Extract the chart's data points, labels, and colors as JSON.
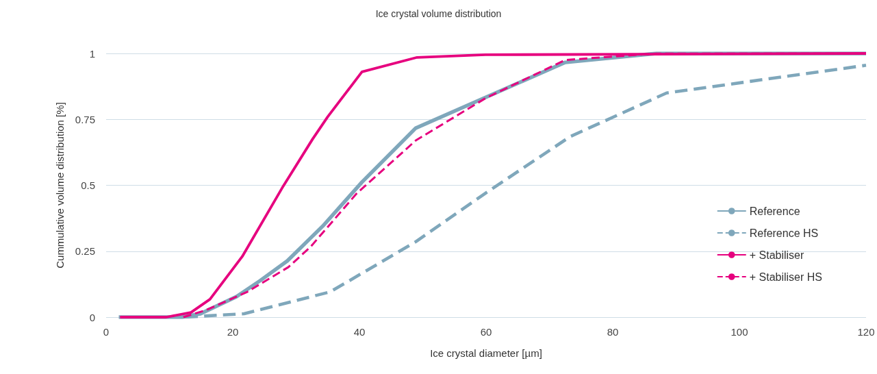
{
  "chart_data": {
    "type": "line",
    "title": "Ice crystal volume distribution",
    "xlabel": "Ice crystal diameter [µm]",
    "ylabel": "Cummulative volume distribution [%]",
    "xlim": [
      0,
      120
    ],
    "xticks": [
      0,
      20,
      40,
      60,
      80,
      100,
      120
    ],
    "ylim": [
      0,
      1
    ],
    "yticks": [
      0,
      0.25,
      0.5,
      0.75,
      1
    ],
    "grid": "y",
    "legend": "right",
    "marker": "none",
    "series": [
      {
        "name": "Reference",
        "color": "#7fa7bb",
        "line_style": "solid",
        "x": [
          2,
          12,
          14.9,
          20.6,
          24.3,
          28.6,
          34.2,
          40.4,
          48.9,
          72.5,
          86.9,
          120
        ],
        "values": [
          0,
          0,
          0.013,
          0.078,
          0.138,
          0.213,
          0.345,
          0.512,
          0.717,
          0.966,
          1,
          1
        ]
      },
      {
        "name": "Reference HS",
        "color": "#7fa7bb",
        "line_style": "dashed",
        "x": [
          12.5,
          21.8,
          35.4,
          48.9,
          59.9,
          73.3,
          88.5,
          120
        ],
        "values": [
          0,
          0.013,
          0.096,
          0.286,
          0.47,
          0.685,
          0.85,
          0.955
        ]
      },
      {
        "name": "+ Stabiliser",
        "color": "#e6007e",
        "line_style": "solid",
        "x": [
          2.2,
          9.5,
          13.4,
          16.4,
          21.5,
          27.8,
          32.6,
          35,
          40.4,
          49.1,
          59.9,
          120
        ],
        "values": [
          0,
          0,
          0.018,
          0.068,
          0.23,
          0.49,
          0.675,
          0.76,
          0.93,
          0.985,
          0.995,
          1
        ]
      },
      {
        "name": "+ Stabiliser HS",
        "color": "#e6007e",
        "line_style": "dashed",
        "x": [
          12.2,
          15.7,
          22.3,
          28.8,
          32.3,
          39.6,
          48.9,
          59.9,
          72.5,
          86.9,
          120
        ],
        "values": [
          0,
          0.026,
          0.096,
          0.19,
          0.267,
          0.47,
          0.67,
          0.83,
          0.975,
          1,
          1
        ]
      }
    ]
  }
}
